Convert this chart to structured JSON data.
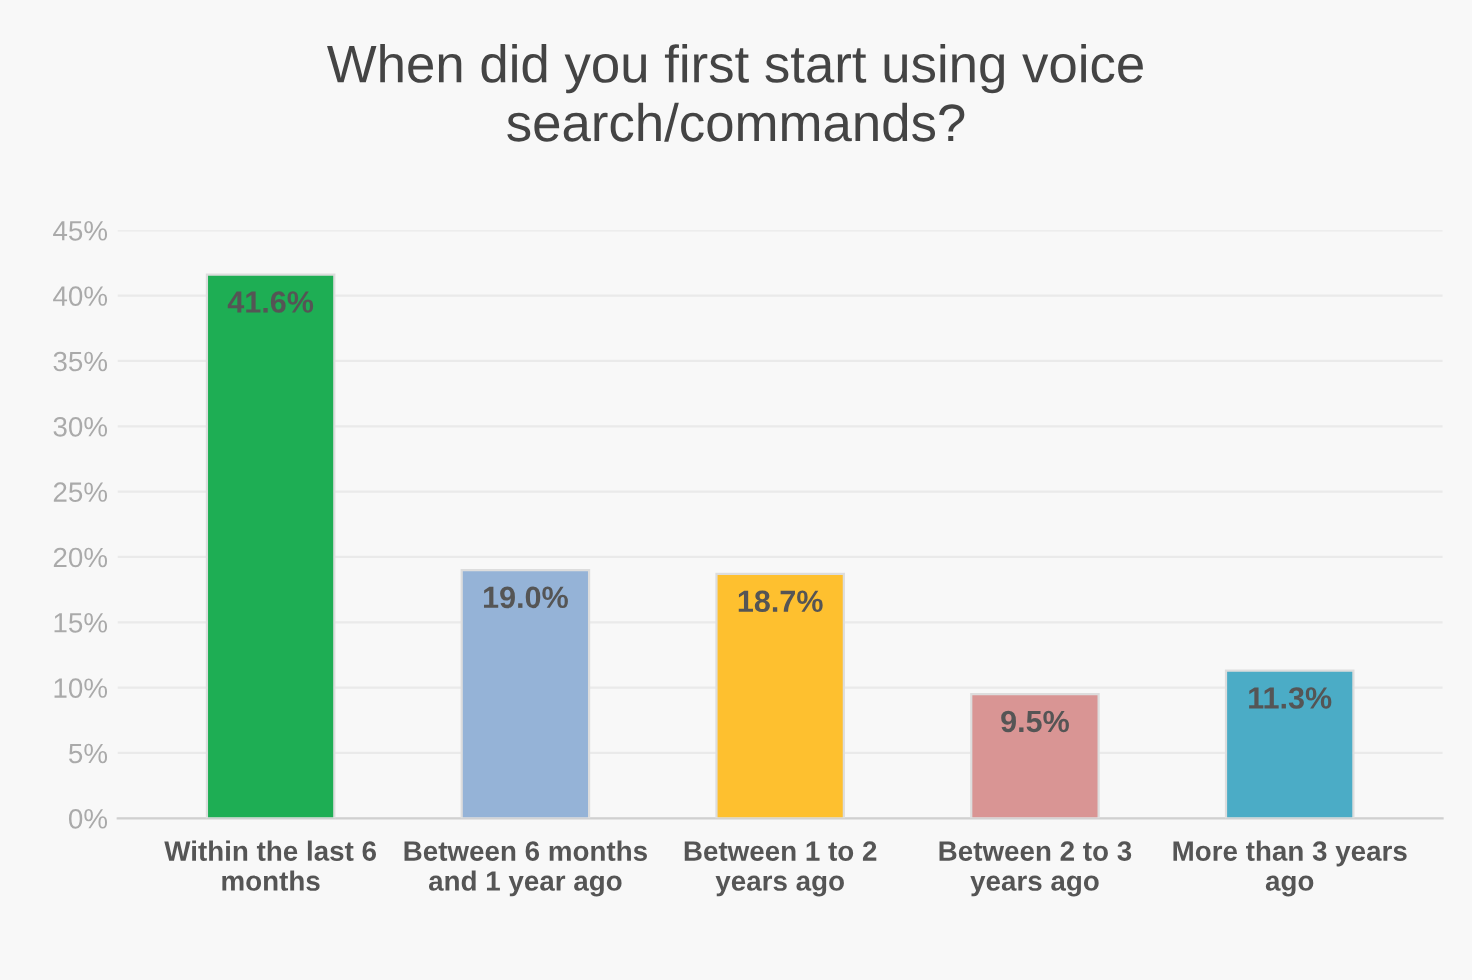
{
  "chart_data": {
    "type": "bar",
    "title": "When did you first start using voice\nsearch/commands?",
    "categories": [
      "Within the last 6\nmonths",
      "Between 6 months\nand 1 year ago",
      "Between 1 to 2\nyears ago",
      "Between 2 to 3\nyears ago",
      "More than 3 years\nago"
    ],
    "values": [
      41.6,
      19.0,
      18.7,
      9.5,
      11.3
    ],
    "colors": [
      "#1eae54",
      "#95b3d7",
      "#fec02f",
      "#d99594",
      "#4bacc6"
    ],
    "value_labels": [
      "41.6%",
      "19.0%",
      "18.7%",
      "9.5%",
      "11.3%"
    ],
    "ylim": [
      0,
      45
    ],
    "yticks": [
      {
        "value": 0,
        "label": "0%"
      },
      {
        "value": 5,
        "label": "5%"
      },
      {
        "value": 10,
        "label": "10%"
      },
      {
        "value": 15,
        "label": "15%"
      },
      {
        "value": 20,
        "label": "20%"
      },
      {
        "value": 25,
        "label": "25%"
      },
      {
        "value": 30,
        "label": "30%"
      },
      {
        "value": 35,
        "label": "35%"
      },
      {
        "value": 40,
        "label": "40%"
      },
      {
        "value": 45,
        "label": "45%"
      }
    ],
    "grid": "y"
  }
}
